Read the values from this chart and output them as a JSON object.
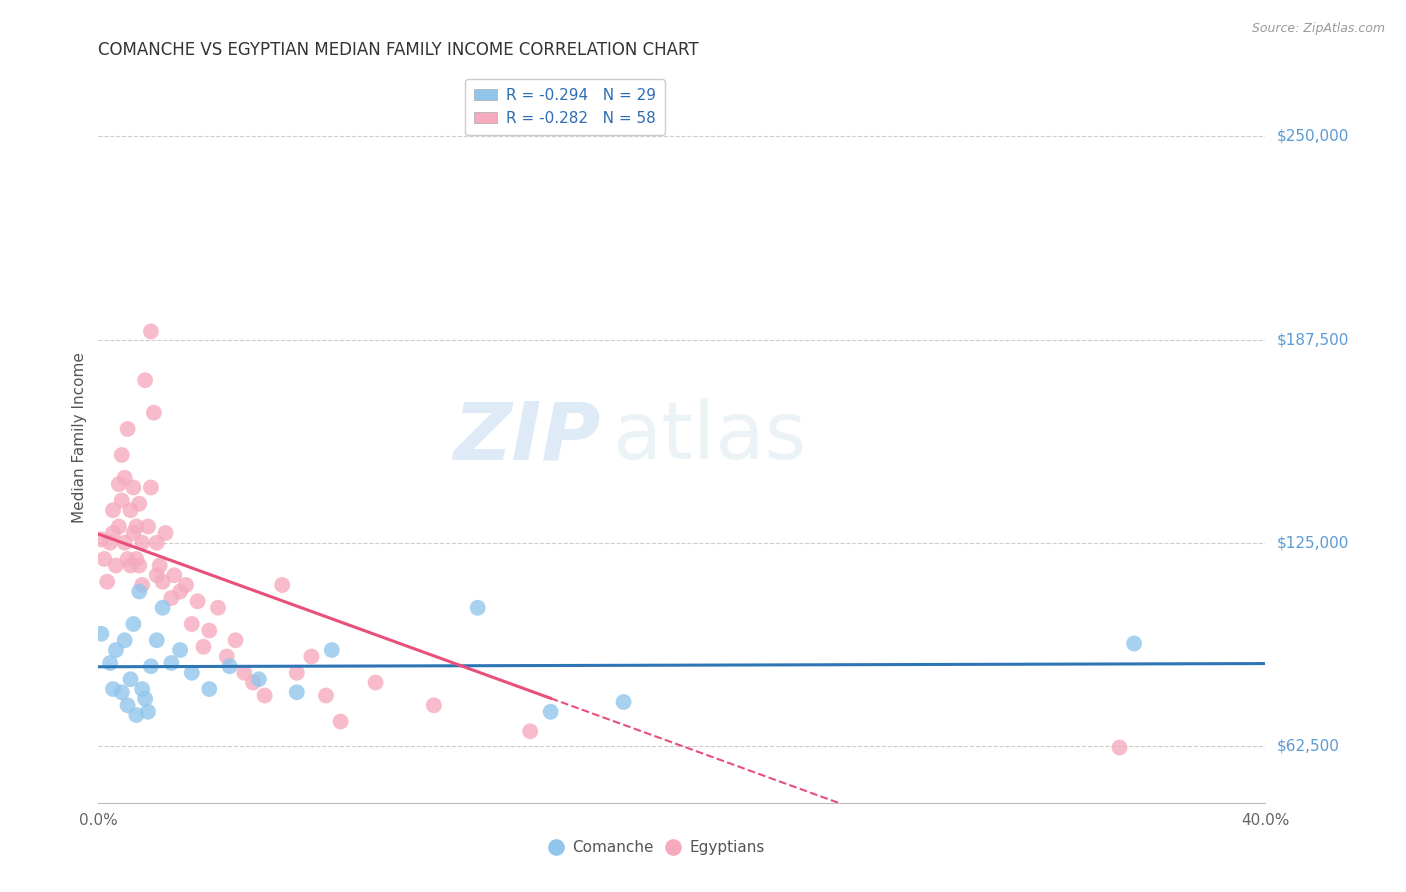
{
  "title": "COMANCHE VS EGYPTIAN MEDIAN FAMILY INCOME CORRELATION CHART",
  "source": "Source: ZipAtlas.com",
  "ylabel": "Median Family Income",
  "legend_comanche": "Comanche",
  "legend_egyptians": "Egyptians",
  "r_comanche": -0.294,
  "n_comanche": 29,
  "r_egyptians": -0.282,
  "n_egyptians": 58,
  "yticks": [
    62500,
    125000,
    187500,
    250000
  ],
  "ytick_labels": [
    "$62,500",
    "$125,000",
    "$187,500",
    "$250,000"
  ],
  "xlim": [
    0.0,
    0.4
  ],
  "ylim": [
    45000,
    270000
  ],
  "color_comanche": "#92C5EC",
  "color_egyptians": "#F5AABE",
  "line_color_comanche": "#2E75B6",
  "line_color_egyptians": "#E8507A",
  "watermark_zip": "ZIP",
  "watermark_atlas": "atlas",
  "comanche_x": [
    0.001,
    0.004,
    0.005,
    0.006,
    0.008,
    0.009,
    0.01,
    0.011,
    0.012,
    0.013,
    0.014,
    0.015,
    0.016,
    0.017,
    0.018,
    0.02,
    0.022,
    0.025,
    0.028,
    0.032,
    0.038,
    0.045,
    0.055,
    0.068,
    0.08,
    0.13,
    0.155,
    0.18,
    0.355
  ],
  "comanche_y": [
    97000,
    88000,
    80000,
    92000,
    79000,
    95000,
    75000,
    83000,
    100000,
    72000,
    110000,
    80000,
    77000,
    73000,
    87000,
    95000,
    105000,
    88000,
    92000,
    85000,
    80000,
    87000,
    83000,
    79000,
    92000,
    105000,
    73000,
    76000,
    94000
  ],
  "egyptians_x": [
    0.001,
    0.002,
    0.003,
    0.004,
    0.005,
    0.005,
    0.006,
    0.007,
    0.007,
    0.008,
    0.008,
    0.009,
    0.009,
    0.01,
    0.01,
    0.011,
    0.011,
    0.012,
    0.012,
    0.013,
    0.013,
    0.014,
    0.014,
    0.015,
    0.015,
    0.016,
    0.017,
    0.018,
    0.018,
    0.019,
    0.02,
    0.02,
    0.021,
    0.022,
    0.023,
    0.025,
    0.026,
    0.028,
    0.03,
    0.032,
    0.034,
    0.036,
    0.038,
    0.041,
    0.044,
    0.047,
    0.05,
    0.053,
    0.057,
    0.063,
    0.068,
    0.073,
    0.078,
    0.083,
    0.095,
    0.115,
    0.148,
    0.35
  ],
  "egyptians_y": [
    126000,
    120000,
    113000,
    125000,
    128000,
    135000,
    118000,
    143000,
    130000,
    152000,
    138000,
    125000,
    145000,
    120000,
    160000,
    118000,
    135000,
    128000,
    142000,
    130000,
    120000,
    137000,
    118000,
    125000,
    112000,
    175000,
    130000,
    190000,
    142000,
    165000,
    115000,
    125000,
    118000,
    113000,
    128000,
    108000,
    115000,
    110000,
    112000,
    100000,
    107000,
    93000,
    98000,
    105000,
    90000,
    95000,
    85000,
    82000,
    78000,
    112000,
    85000,
    90000,
    78000,
    70000,
    82000,
    75000,
    67000,
    62000
  ]
}
